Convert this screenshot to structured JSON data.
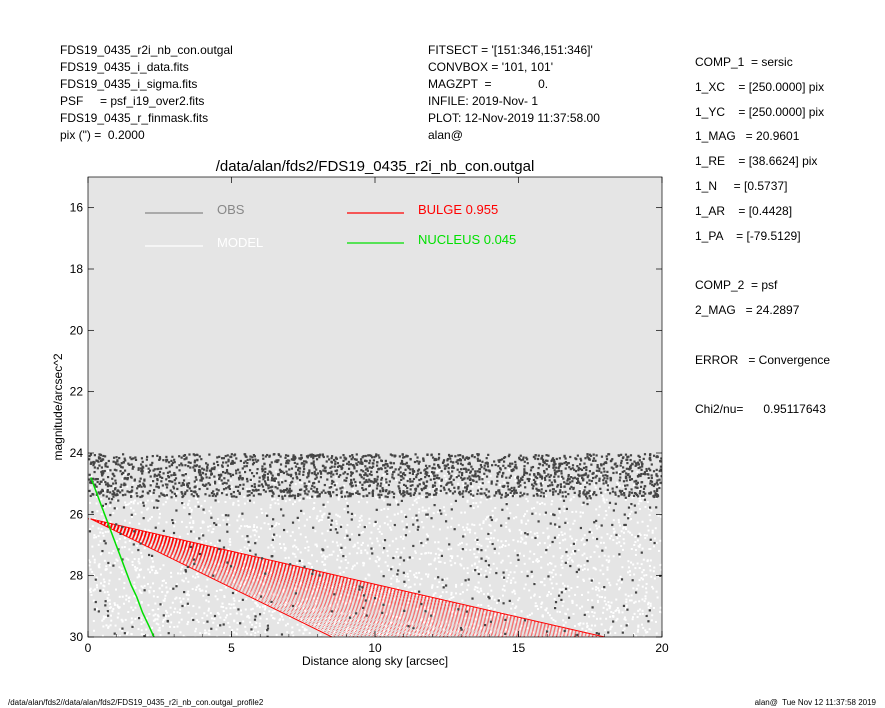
{
  "header_left": [
    "FDS19_0435_r2i_nb_con.outgal",
    "FDS19_0435_i_data.fits",
    "FDS19_0435_i_sigma.fits",
    "PSF     = psf_i19_over2.fits",
    "FDS19_0435_r_finmask.fits",
    "pix (\") =  0.2000"
  ],
  "header_mid": [
    "FITSECT = '[151:346,151:346]'",
    "CONVBOX = '101, 101'",
    "MAGZPT  =              0.",
    "INFILE: 2019-Nov- 1",
    "PLOT: 12-Nov-2019 11:37:58.00",
    "alan@"
  ],
  "header_right": [
    "COMP_1  = sersic",
    "1_XC    = [250.0000] pix",
    "1_YC    = [250.0000] pix",
    "1_MAG   = 20.9601",
    "1_RE    = [38.6624] pix",
    "1_N     = [0.5737]",
    "1_AR    = [0.4428]",
    "1_PA    = [-79.5129]",
    "",
    "COMP_2  = psf",
    "2_MAG   = 24.2897",
    "",
    "ERROR   = Convergence",
    "",
    "Chi2/nu=      0.95117643"
  ],
  "footer": {
    "left": "/data/alan/fds2//data/alan/fds2/FDS19_0435_r2i_nb_con.outgal_profile2",
    "right": "alan@  Tue Nov 12 11:37:58 2019"
  },
  "chart_data": {
    "type": "scatter",
    "title": "/data/alan/fds2/FDS19_0435_r2i_nb_con.outgal",
    "xlabel": "Distance along sky [arcsec]",
    "ylabel": "magnitude/arcsec^2",
    "xlim": [
      0,
      20
    ],
    "ylim": [
      30,
      15
    ],
    "y_inverted": true,
    "xticks": [
      0,
      5,
      10,
      15,
      20
    ],
    "yticks": [
      16,
      18,
      20,
      22,
      24,
      26,
      28,
      30
    ],
    "background": "#e5e5e5",
    "grid": false,
    "legend": [
      {
        "label": "OBS",
        "value": "",
        "color": "#888888"
      },
      {
        "label": "MODEL",
        "value": "",
        "color": "#ffffff"
      },
      {
        "label": "BULGE",
        "value": "0.955",
        "color": "#ff0000"
      },
      {
        "label": "NUCLEUS",
        "value": "0.045",
        "color": "#00e000"
      }
    ],
    "series": [
      {
        "name": "OBS",
        "kind": "points",
        "color": "#444444",
        "y_range": [
          24.0,
          30.0
        ],
        "x_range": [
          0,
          20
        ]
      },
      {
        "name": "MODEL",
        "kind": "points",
        "color": "#ffffff",
        "y_range": [
          24.5,
          30.0
        ],
        "x_range": [
          0,
          20
        ]
      },
      {
        "name": "BULGE",
        "kind": "fan",
        "color": "#ff0000",
        "apex": [
          0.1,
          26.15
        ],
        "upper_edge_end": [
          18,
          30
        ],
        "lower_edge_end": [
          8.5,
          30
        ]
      },
      {
        "name": "NUCLEUS",
        "kind": "line",
        "color": "#00e000",
        "x": [
          0.1,
          0.3,
          0.5,
          0.7,
          0.9,
          1.1,
          1.3,
          1.5,
          1.7,
          1.9,
          2.1,
          2.3
        ],
        "y": [
          24.8,
          25.3,
          25.8,
          26.3,
          26.8,
          27.3,
          27.8,
          28.3,
          28.7,
          29.2,
          29.6,
          30.0
        ]
      }
    ]
  }
}
